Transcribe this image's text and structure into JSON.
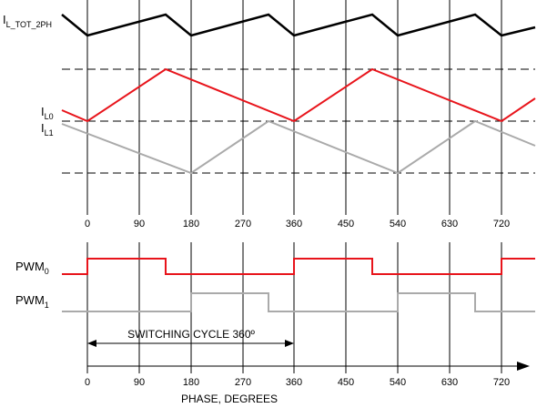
{
  "labels": {
    "itot": {
      "main": "I",
      "sub": "L_TOT_2PH"
    },
    "il0": {
      "main": "I",
      "sub": "L0"
    },
    "il1": {
      "main": "I",
      "sub": "L1"
    },
    "pwm0": {
      "main": "PWM",
      "sub": "0"
    },
    "pwm1": {
      "main": "PWM",
      "sub": "1"
    }
  },
  "phase_ticks": [
    "0",
    "90",
    "180",
    "270",
    "360",
    "450",
    "540",
    "630",
    "720"
  ],
  "switching_cycle_label": "SWITCHING CYCLE 360º",
  "axis_title": "PHASE, DEGREES",
  "colors": {
    "total": "#000000",
    "phase0": "#e8141b",
    "phase1": "#aaaaaa",
    "grid": "#000000"
  }
}
